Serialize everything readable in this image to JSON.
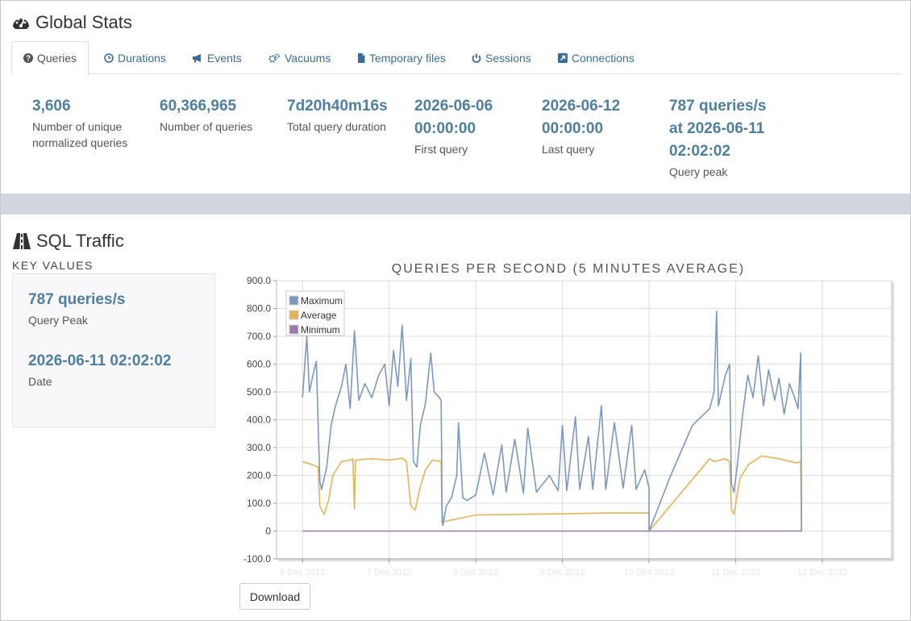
{
  "global_stats": {
    "title": "Global Stats",
    "icon": "dashboard-icon",
    "tabs": [
      {
        "label": "Queries",
        "icon": "question-circle-icon",
        "active": true
      },
      {
        "label": "Durations",
        "icon": "clock-icon"
      },
      {
        "label": "Events",
        "icon": "bullhorn-icon"
      },
      {
        "label": "Vacuums",
        "icon": "gears-icon"
      },
      {
        "label": "Temporary files",
        "icon": "file-icon"
      },
      {
        "label": "Sessions",
        "icon": "power-icon"
      },
      {
        "label": "Connections",
        "icon": "external-link-icon"
      }
    ],
    "stats": [
      {
        "value": "3,606",
        "label": "Number of unique\nnormalized queries"
      },
      {
        "value": "60,366,965",
        "label": "Number of queries"
      },
      {
        "value": "7d20h40m16s",
        "label": "Total query duration"
      },
      {
        "value": "2026-06-06\n00:00:00",
        "label": "First query"
      },
      {
        "value": "2026-06-12\n00:00:00",
        "label": "Last query"
      },
      {
        "value": "787 queries/s\nat 2026-06-11\n02:02:02",
        "label": "Query peak"
      }
    ]
  },
  "sql_traffic": {
    "title": "SQL Traffic",
    "icon": "road-icon",
    "key_values_heading": "KEY VALUES",
    "key_values": [
      {
        "value": "787 queries/s",
        "label": "Query Peak"
      },
      {
        "value": "2026-06-11 02:02:02",
        "label": "Date"
      }
    ],
    "download_label": "Download"
  },
  "chart_data": {
    "type": "line",
    "title": "QUERIES PER SECOND (5 MINUTES AVERAGE)",
    "xlabel": "",
    "ylabel": "",
    "ylim": [
      -100,
      900
    ],
    "yticks": [
      "900.0",
      "800.0",
      "700.0",
      "600.0",
      "500.0",
      "400.0",
      "300.0",
      "200.0",
      "100.0",
      "0",
      "-100.0"
    ],
    "xticks": [
      "6 Dec 2012",
      "7 Dec 2012",
      "8 Dec 2012",
      "9 Dec 2012",
      "10 Dec 2012",
      "11 Dec 2012",
      "12 Dec 2012"
    ],
    "xlim": [
      -0.3,
      6.8
    ],
    "grid": true,
    "legend_position": "top-left",
    "colors": {
      "Maximum": "#7c98bd",
      "Average": "#e3b45a",
      "Minimum": "#9c7bac"
    },
    "series": [
      {
        "name": "Maximum",
        "points": [
          [
            0.0,
            480
          ],
          [
            0.05,
            700
          ],
          [
            0.08,
            500
          ],
          [
            0.12,
            560
          ],
          [
            0.16,
            610
          ],
          [
            0.2,
            180
          ],
          [
            0.22,
            150
          ],
          [
            0.28,
            230
          ],
          [
            0.33,
            380
          ],
          [
            0.38,
            450
          ],
          [
            0.45,
            520
          ],
          [
            0.5,
            600
          ],
          [
            0.55,
            440
          ],
          [
            0.6,
            720
          ],
          [
            0.65,
            470
          ],
          [
            0.72,
            530
          ],
          [
            0.8,
            480
          ],
          [
            0.88,
            560
          ],
          [
            0.95,
            600
          ],
          [
            1.0,
            450
          ],
          [
            1.05,
            650
          ],
          [
            1.1,
            520
          ],
          [
            1.15,
            740
          ],
          [
            1.2,
            470
          ],
          [
            1.25,
            620
          ],
          [
            1.28,
            250
          ],
          [
            1.32,
            230
          ],
          [
            1.36,
            380
          ],
          [
            1.42,
            460
          ],
          [
            1.48,
            640
          ],
          [
            1.52,
            500
          ],
          [
            1.58,
            480
          ],
          [
            1.6,
            470
          ],
          [
            1.61,
            80
          ],
          [
            1.62,
            20
          ],
          [
            1.66,
            90
          ],
          [
            1.72,
            120
          ],
          [
            1.78,
            200
          ],
          [
            1.8,
            390
          ],
          [
            1.85,
            120
          ],
          [
            1.9,
            110
          ],
          [
            2.0,
            130
          ],
          [
            2.1,
            280
          ],
          [
            2.2,
            130
          ],
          [
            2.3,
            310
          ],
          [
            2.35,
            140
          ],
          [
            2.45,
            330
          ],
          [
            2.55,
            135
          ],
          [
            2.6,
            370
          ],
          [
            2.7,
            140
          ],
          [
            2.85,
            200
          ],
          [
            2.95,
            145
          ],
          [
            3.0,
            380
          ],
          [
            3.05,
            145
          ],
          [
            3.15,
            410
          ],
          [
            3.2,
            150
          ],
          [
            3.3,
            340
          ],
          [
            3.35,
            150
          ],
          [
            3.45,
            450
          ],
          [
            3.5,
            150
          ],
          [
            3.6,
            390
          ],
          [
            3.7,
            155
          ],
          [
            3.8,
            380
          ],
          [
            3.85,
            150
          ],
          [
            3.95,
            220
          ],
          [
            4.0,
            155
          ],
          [
            4.0,
            0
          ],
          [
            4.25,
            200
          ],
          [
            4.5,
            380
          ],
          [
            4.7,
            440
          ],
          [
            4.75,
            500
          ],
          [
            4.78,
            790
          ],
          [
            4.8,
            450
          ],
          [
            4.88,
            560
          ],
          [
            4.93,
            600
          ],
          [
            4.95,
            170
          ],
          [
            4.98,
            140
          ],
          [
            5.02,
            240
          ],
          [
            5.08,
            420
          ],
          [
            5.14,
            560
          ],
          [
            5.2,
            480
          ],
          [
            5.26,
            630
          ],
          [
            5.32,
            450
          ],
          [
            5.38,
            580
          ],
          [
            5.45,
            470
          ],
          [
            5.5,
            550
          ],
          [
            5.56,
            420
          ],
          [
            5.62,
            530
          ],
          [
            5.68,
            480
          ],
          [
            5.72,
            440
          ],
          [
            5.75,
            640
          ],
          [
            5.76,
            0
          ]
        ]
      },
      {
        "name": "Average",
        "points": [
          [
            0.0,
            250
          ],
          [
            0.1,
            240
          ],
          [
            0.18,
            230
          ],
          [
            0.2,
            90
          ],
          [
            0.25,
            60
          ],
          [
            0.3,
            110
          ],
          [
            0.35,
            200
          ],
          [
            0.45,
            250
          ],
          [
            0.55,
            255
          ],
          [
            0.58,
            260
          ],
          [
            0.6,
            80
          ],
          [
            0.61,
            255
          ],
          [
            0.8,
            260
          ],
          [
            1.0,
            255
          ],
          [
            1.15,
            262
          ],
          [
            1.2,
            250
          ],
          [
            1.25,
            90
          ],
          [
            1.3,
            75
          ],
          [
            1.36,
            160
          ],
          [
            1.42,
            220
          ],
          [
            1.5,
            255
          ],
          [
            1.6,
            250
          ],
          [
            1.61,
            30
          ],
          [
            1.65,
            35
          ],
          [
            1.8,
            45
          ],
          [
            2.0,
            58
          ],
          [
            2.5,
            60
          ],
          [
            3.0,
            62
          ],
          [
            3.5,
            65
          ],
          [
            4.0,
            65
          ],
          [
            4.0,
            0
          ],
          [
            4.7,
            260
          ],
          [
            4.75,
            250
          ],
          [
            4.88,
            260
          ],
          [
            4.93,
            250
          ],
          [
            4.95,
            80
          ],
          [
            4.98,
            60
          ],
          [
            5.05,
            190
          ],
          [
            5.15,
            240
          ],
          [
            5.3,
            270
          ],
          [
            5.5,
            260
          ],
          [
            5.7,
            245
          ],
          [
            5.75,
            250
          ],
          [
            5.76,
            0
          ]
        ]
      },
      {
        "name": "Minimum",
        "points": [
          [
            0.0,
            0
          ],
          [
            4.0,
            0
          ],
          [
            5.76,
            0
          ]
        ]
      }
    ]
  }
}
